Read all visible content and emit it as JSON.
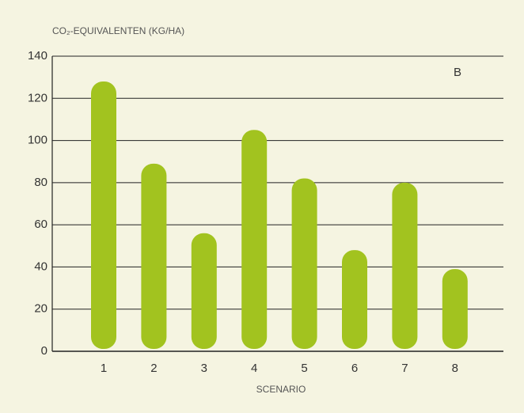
{
  "chart_data": {
    "type": "bar",
    "y_label": "CO₂-EQUIVALENTEN (KG/HA)",
    "x_label": "SCENARIO",
    "annotation": "B",
    "categories": [
      "1",
      "2",
      "3",
      "4",
      "5",
      "6",
      "7",
      "8"
    ],
    "values": [
      128,
      89,
      56,
      105,
      82,
      48,
      80,
      39
    ],
    "color": "#a2c31f",
    "ylim": [
      0,
      140
    ],
    "yticks": [
      0,
      20,
      40,
      60,
      80,
      100,
      120,
      140
    ],
    "grid": true
  }
}
